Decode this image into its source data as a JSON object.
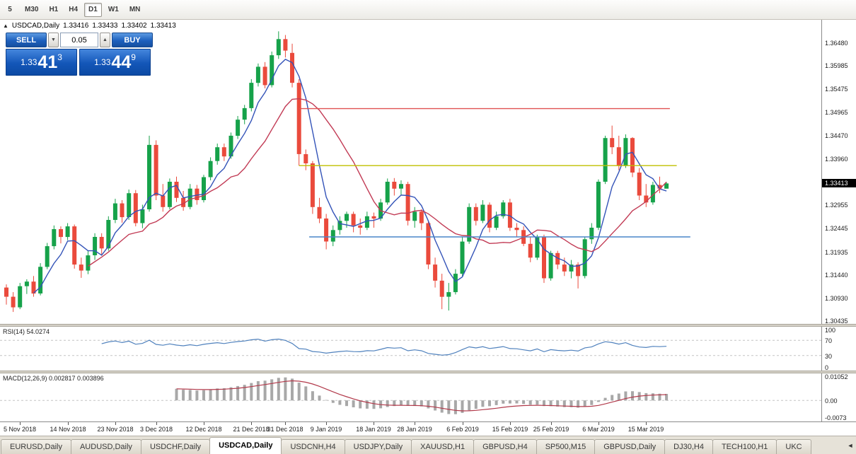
{
  "toolbar": {
    "timeframes": [
      {
        "label": "5",
        "active": false
      },
      {
        "label": "M30",
        "active": false
      },
      {
        "label": "H1",
        "active": false
      },
      {
        "label": "H4",
        "active": false
      },
      {
        "label": "D1",
        "active": true
      },
      {
        "label": "W1",
        "active": false
      },
      {
        "label": "MN",
        "active": false
      }
    ]
  },
  "chart": {
    "collapse_icon": "▲",
    "title": {
      "symbol": "USDCAD,Daily",
      "open": "1.33416",
      "high": "1.33433",
      "low": "1.33402",
      "close": "1.33413"
    },
    "current_price": "1.33413",
    "price_axis": [
      "1.36480",
      "1.35985",
      "1.35475",
      "1.34965",
      "1.34470",
      "1.33960",
      "1.33455",
      "1.32955",
      "1.32445",
      "1.31935",
      "1.31440",
      "1.30930",
      "1.30435"
    ]
  },
  "trade_panel": {
    "sell_label": "SELL",
    "buy_label": "BUY",
    "volume": "0.05",
    "dropdown_icon": "▼",
    "up_icon": "▲",
    "sell_price": {
      "prefix": "1.33",
      "digits": "41",
      "sup": "3"
    },
    "buy_price": {
      "prefix": "1.33",
      "digits": "44",
      "sup": "9"
    }
  },
  "rsi_panel": {
    "label": "RSI(14) 54.0274",
    "period": 14,
    "current_value": "54.0274",
    "axis": [
      "100",
      "70",
      "30",
      "0"
    ],
    "levels": [
      70,
      30
    ],
    "line_color": "#4f81bd"
  },
  "macd_panel": {
    "label": "MACD(12,26,9) 0.002817 0.003896",
    "macd_value": "0.002817",
    "signal_value": "0.003896",
    "axis": [
      "0.01052",
      "0.00",
      "-0.0073"
    ],
    "range": [
      -0.0073,
      0.01052
    ],
    "bar_color": "#a8a8a8",
    "signal_color": "#b2394a"
  },
  "date_axis": [
    {
      "label": "5 Nov 2018",
      "index": 2
    },
    {
      "label": "14 Nov 2018",
      "index": 9
    },
    {
      "label": "23 Nov 2018",
      "index": 16
    },
    {
      "label": "3 Dec 2018",
      "index": 22
    },
    {
      "label": "12 Dec 2018",
      "index": 29
    },
    {
      "label": "21 Dec 2018",
      "index": 36
    },
    {
      "label": "31 Dec 2018",
      "index": 41
    },
    {
      "label": "9 Jan 2019",
      "index": 47
    },
    {
      "label": "18 Jan 2019",
      "index": 54
    },
    {
      "label": "28 Jan 2019",
      "index": 60
    },
    {
      "label": "6 Feb 2019",
      "index": 67
    },
    {
      "label": "15 Feb 2019",
      "index": 74
    },
    {
      "label": "25 Feb 2019",
      "index": 80
    },
    {
      "label": "6 Mar 2019",
      "index": 87
    },
    {
      "label": "15 Mar 2019",
      "index": 94
    }
  ],
  "tabs": {
    "scroll_left_icon": "◄",
    "items": [
      {
        "label": "EURUSD,Daily",
        "active": false
      },
      {
        "label": "AUDUSD,Daily",
        "active": false
      },
      {
        "label": "USDCHF,Daily",
        "active": false
      },
      {
        "label": "USDCAD,Daily",
        "active": true
      },
      {
        "label": "USDCNH,H4",
        "active": false
      },
      {
        "label": "USDJPY,Daily",
        "active": false
      },
      {
        "label": "XAUUSD,H1",
        "active": false
      },
      {
        "label": "GBPUSD,H4",
        "active": false
      },
      {
        "label": "SP500,M15",
        "active": false
      },
      {
        "label": "GBPUSD,Daily",
        "active": false
      },
      {
        "label": "DJ30,H4",
        "active": false
      },
      {
        "label": "TECH100,H1",
        "active": false
      },
      {
        "label": "UKC",
        "active": false
      }
    ]
  },
  "chart_data": {
    "type": "candlestick",
    "title": "USDCAD,Daily",
    "ylim": [
      1.3036,
      1.3697
    ],
    "grid": false,
    "colors": {
      "up": "#16a24a",
      "down": "#ea4a3c",
      "ma_fast": "#3353b8",
      "ma_slow": "#c23b55"
    },
    "overlays": [
      {
        "name": "fast-ma",
        "method": "sma",
        "period": 5
      },
      {
        "name": "slow-ma",
        "method": "sma",
        "period": 13
      }
    ],
    "hlines": [
      {
        "price": 1.3504,
        "color": "#e05252",
        "from_index": 43,
        "to_index": 97.5
      },
      {
        "price": 1.338,
        "color": "#bfbf00",
        "from_index": 43,
        "to_index": 98.5
      },
      {
        "price": 1.3225,
        "color": "#4a86c8",
        "from_index": 44.5,
        "to_index": 100.5
      }
    ],
    "indicators": [
      {
        "name": "RSI",
        "period": 14,
        "current": 54.0274
      },
      {
        "name": "MACD",
        "fast": 12,
        "slow": 26,
        "signal": 9,
        "current": [
          0.002817,
          0.003896
        ]
      }
    ],
    "candles": [
      [
        1.3115,
        1.3122,
        1.3078,
        1.3095
      ],
      [
        1.3095,
        1.3105,
        1.3062,
        1.3072
      ],
      [
        1.3072,
        1.3125,
        1.3068,
        1.3118
      ],
      [
        1.3118,
        1.3133,
        1.3101,
        1.3128
      ],
      [
        1.3128,
        1.314,
        1.3095,
        1.3102
      ],
      [
        1.3102,
        1.3168,
        1.3098,
        1.316
      ],
      [
        1.316,
        1.3212,
        1.3155,
        1.3205
      ],
      [
        1.3205,
        1.325,
        1.3198,
        1.3242
      ],
      [
        1.3242,
        1.3248,
        1.3211,
        1.3225
      ],
      [
        1.3225,
        1.3255,
        1.3218,
        1.3248
      ],
      [
        1.3248,
        1.3252,
        1.3156,
        1.3165
      ],
      [
        1.3165,
        1.318,
        1.3136,
        1.3152
      ],
      [
        1.3152,
        1.3195,
        1.3144,
        1.3185
      ],
      [
        1.3185,
        1.3233,
        1.3175,
        1.3225
      ],
      [
        1.3225,
        1.3233,
        1.3185,
        1.32
      ],
      [
        1.32,
        1.327,
        1.3195,
        1.3262
      ],
      [
        1.3262,
        1.3308,
        1.3255,
        1.3298
      ],
      [
        1.3298,
        1.3305,
        1.3256,
        1.3268
      ],
      [
        1.3268,
        1.3328,
        1.3262,
        1.332
      ],
      [
        1.332,
        1.3327,
        1.3248,
        1.3255
      ],
      [
        1.3255,
        1.3295,
        1.3244,
        1.3285
      ],
      [
        1.3285,
        1.3445,
        1.328,
        1.3425
      ],
      [
        1.3425,
        1.3435,
        1.3305,
        1.3315
      ],
      [
        1.3315,
        1.334,
        1.328,
        1.329
      ],
      [
        1.329,
        1.3352,
        1.3285,
        1.3345
      ],
      [
        1.3345,
        1.3356,
        1.3301,
        1.331
      ],
      [
        1.331,
        1.3325,
        1.3282,
        1.329
      ],
      [
        1.329,
        1.334,
        1.3285,
        1.333
      ],
      [
        1.333,
        1.3338,
        1.3295,
        1.3305
      ],
      [
        1.3305,
        1.336,
        1.33,
        1.3355
      ],
      [
        1.3355,
        1.3398,
        1.3348,
        1.339
      ],
      [
        1.339,
        1.3428,
        1.3382,
        1.342
      ],
      [
        1.342,
        1.3428,
        1.339,
        1.34
      ],
      [
        1.34,
        1.3452,
        1.3395,
        1.3445
      ],
      [
        1.3445,
        1.3488,
        1.3438,
        1.348
      ],
      [
        1.348,
        1.3512,
        1.347,
        1.3505
      ],
      [
        1.3505,
        1.3568,
        1.3498,
        1.356
      ],
      [
        1.356,
        1.3602,
        1.3552,
        1.3595
      ],
      [
        1.3595,
        1.3605,
        1.3548,
        1.3555
      ],
      [
        1.3555,
        1.3628,
        1.355,
        1.362
      ],
      [
        1.362,
        1.3672,
        1.3612,
        1.3655
      ],
      [
        1.3655,
        1.3664,
        1.3615,
        1.363
      ],
      [
        1.3625,
        1.3645,
        1.355,
        1.356
      ],
      [
        1.356,
        1.3568,
        1.338,
        1.3405
      ],
      [
        1.3405,
        1.3415,
        1.337,
        1.3385
      ],
      [
        1.3385,
        1.339,
        1.3275,
        1.329
      ],
      [
        1.329,
        1.331,
        1.3255,
        1.3265
      ],
      [
        1.3265,
        1.3275,
        1.3198,
        1.3215
      ],
      [
        1.3215,
        1.325,
        1.3205,
        1.324
      ],
      [
        1.324,
        1.327,
        1.323,
        1.326
      ],
      [
        1.326,
        1.328,
        1.3245,
        1.3275
      ],
      [
        1.3275,
        1.328,
        1.3235,
        1.325
      ],
      [
        1.325,
        1.3265,
        1.323,
        1.3245
      ],
      [
        1.3245,
        1.328,
        1.324,
        1.327
      ],
      [
        1.327,
        1.3278,
        1.3245,
        1.3265
      ],
      [
        1.3265,
        1.3308,
        1.326,
        1.33
      ],
      [
        1.33,
        1.3352,
        1.3295,
        1.3345
      ],
      [
        1.3345,
        1.3353,
        1.3315,
        1.333
      ],
      [
        1.333,
        1.3348,
        1.3315,
        1.334
      ],
      [
        1.334,
        1.3345,
        1.325,
        1.326
      ],
      [
        1.326,
        1.329,
        1.3245,
        1.328
      ],
      [
        1.328,
        1.3285,
        1.324,
        1.3255
      ],
      [
        1.3255,
        1.326,
        1.3155,
        1.3165
      ],
      [
        1.3165,
        1.318,
        1.3115,
        1.313
      ],
      [
        1.313,
        1.3145,
        1.3068,
        1.3095
      ],
      [
        1.3095,
        1.3125,
        1.3065,
        1.3105
      ],
      [
        1.3105,
        1.3155,
        1.31,
        1.3145
      ],
      [
        1.3145,
        1.3225,
        1.314,
        1.3215
      ],
      [
        1.3215,
        1.3298,
        1.321,
        1.329
      ],
      [
        1.329,
        1.3298,
        1.325,
        1.326
      ],
      [
        1.326,
        1.3305,
        1.3255,
        1.3295
      ],
      [
        1.3295,
        1.33,
        1.3235,
        1.3245
      ],
      [
        1.3245,
        1.328,
        1.324,
        1.327
      ],
      [
        1.327,
        1.3305,
        1.3265,
        1.33
      ],
      [
        1.33,
        1.3308,
        1.3238,
        1.3245
      ],
      [
        1.3245,
        1.3255,
        1.3225,
        1.324
      ],
      [
        1.324,
        1.3248,
        1.3205,
        1.321
      ],
      [
        1.321,
        1.3225,
        1.317,
        1.318
      ],
      [
        1.318,
        1.323,
        1.3175,
        1.3225
      ],
      [
        1.3225,
        1.323,
        1.3125,
        1.3135
      ],
      [
        1.3135,
        1.3195,
        1.313,
        1.319
      ],
      [
        1.319,
        1.3195,
        1.3155,
        1.3165
      ],
      [
        1.3165,
        1.318,
        1.314,
        1.315
      ],
      [
        1.315,
        1.3175,
        1.3135,
        1.3165
      ],
      [
        1.3165,
        1.317,
        1.3113,
        1.314
      ],
      [
        1.314,
        1.3225,
        1.3135,
        1.322
      ],
      [
        1.322,
        1.3255,
        1.321,
        1.3245
      ],
      [
        1.3245,
        1.335,
        1.324,
        1.3345
      ],
      [
        1.3345,
        1.3445,
        1.334,
        1.344
      ],
      [
        1.344,
        1.3467,
        1.3405,
        1.342
      ],
      [
        1.342,
        1.3445,
        1.337,
        1.338
      ],
      [
        1.338,
        1.3448,
        1.3375,
        1.344
      ],
      [
        1.344,
        1.3442,
        1.3355,
        1.3365
      ],
      [
        1.3365,
        1.3375,
        1.3305,
        1.3315
      ],
      [
        1.3315,
        1.334,
        1.329,
        1.33
      ],
      [
        1.33,
        1.3345,
        1.3295,
        1.3338
      ],
      [
        1.3338,
        1.3356,
        1.332,
        1.333
      ],
      [
        1.333,
        1.33433,
        1.33402,
        1.33413
      ]
    ]
  }
}
